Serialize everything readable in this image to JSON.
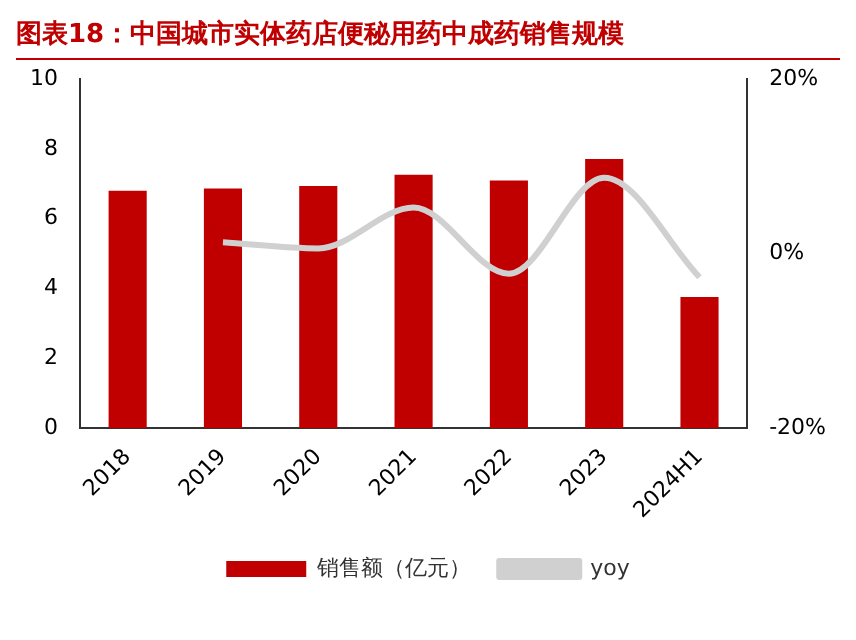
{
  "chart_data": {
    "type": "bar",
    "title": "图表18：中国城市实体药店便秘用药中成药销售规模",
    "categories": [
      "2018",
      "2019",
      "2020",
      "2021",
      "2022",
      "2023",
      "2024H1"
    ],
    "series": [
      {
        "name": "销售额（亿元）",
        "color": "#c00000",
        "values": [
          6.8,
          6.87,
          6.94,
          7.26,
          7.1,
          7.71,
          3.76
        ]
      },
      {
        "name": "yoy",
        "type": "line",
        "axis": "y2",
        "color": "#d0d0d0",
        "values": [
          null,
          1.3,
          0.6,
          5.3,
          -2.3,
          8.7,
          -2.7
        ]
      }
    ],
    "ylim": [
      0,
      10
    ],
    "yticks": [
      0,
      2,
      4,
      6,
      8,
      10
    ],
    "y2lim": [
      -20,
      20
    ],
    "y2ticks": [
      {
        "value": -20,
        "label": "-20%"
      },
      {
        "value": 0,
        "label": "0%"
      },
      {
        "value": 20,
        "label": "20%"
      }
    ],
    "grid": false,
    "legend": "bottom",
    "marker": "none"
  }
}
